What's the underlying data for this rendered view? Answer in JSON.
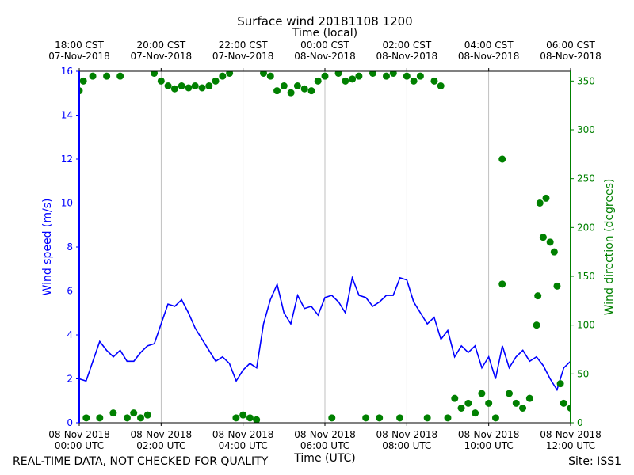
{
  "chart_data": {
    "type": "line",
    "title": "Surface wind 20181108 1200",
    "x_label": "Time (UTC)",
    "x2_label": "Time (local)",
    "y_label": "Wind speed (m/s)",
    "y2_label": "Wind direction (degrees)",
    "footer_left": "REAL-TIME DATA, NOT CHECKED FOR QUALITY",
    "footer_right": "Site: ISS1",
    "xlim": [
      0,
      12
    ],
    "xticks": [
      {
        "value": 0,
        "label": "08-Nov-2018\n00:00 UTC"
      },
      {
        "value": 2,
        "label": "08-Nov-2018\n02:00 UTC"
      },
      {
        "value": 4,
        "label": "08-Nov-2018\n04:00 UTC"
      },
      {
        "value": 6,
        "label": "08-Nov-2018\n06:00 UTC"
      },
      {
        "value": 8,
        "label": "08-Nov-2018\n08:00 UTC"
      },
      {
        "value": 10,
        "label": "08-Nov-2018\n10:00 UTC"
      },
      {
        "value": 12,
        "label": "08-Nov-2018\n12:00 UTC"
      }
    ],
    "x2ticks": [
      {
        "value": 0,
        "label": "18:00 CST\n07-Nov-2018"
      },
      {
        "value": 2,
        "label": "20:00 CST\n07-Nov-2018"
      },
      {
        "value": 4,
        "label": "22:00 CST\n07-Nov-2018"
      },
      {
        "value": 6,
        "label": "00:00 CST\n08-Nov-2018"
      },
      {
        "value": 8,
        "label": "02:00 CST\n08-Nov-2018"
      },
      {
        "value": 10,
        "label": "04:00 CST\n08-Nov-2018"
      },
      {
        "value": 12,
        "label": "06:00 CST\n08-Nov-2018"
      }
    ],
    "ylim": [
      0,
      16
    ],
    "yticks": [
      0,
      2,
      4,
      6,
      8,
      10,
      12,
      14,
      16
    ],
    "y2lim": [
      0,
      360
    ],
    "y2ticks": [
      0,
      50,
      100,
      150,
      200,
      250,
      300,
      350
    ],
    "grid": "x",
    "series": [
      {
        "name": "Wind speed",
        "type": "line",
        "color": "#0000ff",
        "x": [
          0,
          0.167,
          0.333,
          0.5,
          0.667,
          0.833,
          1,
          1.167,
          1.333,
          1.5,
          1.667,
          1.833,
          2,
          2.167,
          2.333,
          2.5,
          2.667,
          2.833,
          3,
          3.167,
          3.333,
          3.5,
          3.667,
          3.833,
          4,
          4.167,
          4.333,
          4.5,
          4.667,
          4.833,
          5,
          5.167,
          5.333,
          5.5,
          5.667,
          5.833,
          6,
          6.167,
          6.333,
          6.5,
          6.667,
          6.833,
          7,
          7.167,
          7.333,
          7.5,
          7.667,
          7.833,
          8,
          8.167,
          8.333,
          8.5,
          8.667,
          8.833,
          9,
          9.167,
          9.333,
          9.5,
          9.667,
          9.833,
          10,
          10.167,
          10.333,
          10.5,
          10.667,
          10.833,
          11,
          11.167,
          11.333,
          11.5,
          11.667,
          11.833,
          12
        ],
        "values": [
          2.0,
          1.9,
          2.8,
          3.7,
          3.3,
          3.0,
          3.3,
          2.8,
          2.8,
          3.2,
          3.5,
          3.6,
          4.5,
          5.4,
          5.3,
          5.6,
          5.0,
          4.3,
          3.8,
          3.3,
          2.8,
          3.0,
          2.7,
          1.9,
          2.4,
          2.7,
          2.5,
          4.5,
          5.6,
          6.3,
          5.0,
          4.5,
          5.8,
          5.2,
          5.3,
          4.9,
          5.7,
          5.8,
          5.5,
          5.0,
          6.6,
          5.8,
          5.7,
          5.3,
          5.5,
          5.8,
          5.8,
          6.6,
          6.5,
          5.5,
          5.0,
          4.5,
          4.8,
          3.8,
          4.2,
          3.0,
          3.5,
          3.2,
          3.5,
          2.5,
          3.0,
          2.0,
          3.5,
          2.5,
          3.0,
          3.3,
          2.8,
          3.0,
          2.6,
          2.0,
          1.5,
          2.5,
          2.8
        ]
      },
      {
        "name": "Wind direction",
        "type": "scatter",
        "axis": "y2",
        "color": "#008000",
        "x": [
          0,
          0.1,
          0.17,
          0.33,
          0.5,
          0.67,
          0.83,
          1,
          1.17,
          1.33,
          1.5,
          1.67,
          1.83,
          2,
          2.17,
          2.33,
          2.5,
          2.67,
          2.83,
          3,
          3.17,
          3.33,
          3.5,
          3.67,
          3.83,
          4,
          4.17,
          4.33,
          4.5,
          4.67,
          4.83,
          5,
          5.17,
          5.33,
          5.5,
          5.67,
          5.83,
          6,
          6.17,
          6.33,
          6.5,
          6.67,
          6.83,
          7,
          7.17,
          7.33,
          7.5,
          7.67,
          7.83,
          8,
          8.17,
          8.33,
          8.5,
          8.67,
          8.83,
          9,
          9.17,
          9.33,
          9.5,
          9.67,
          9.83,
          10,
          10.17,
          10.33,
          10.33,
          10.5,
          10.67,
          10.83,
          11,
          11.17,
          11.2,
          11.25,
          11.33,
          11.4,
          11.5,
          11.6,
          11.67,
          11.75,
          11.83,
          12
        ],
        "values": [
          340,
          350,
          5,
          355,
          5,
          355,
          10,
          355,
          5,
          10,
          5,
          8,
          358,
          350,
          345,
          342,
          345,
          343,
          345,
          343,
          345,
          350,
          355,
          358,
          5,
          8,
          5,
          3,
          358,
          355,
          340,
          345,
          338,
          345,
          342,
          340,
          350,
          355,
          5,
          358,
          350,
          352,
          355,
          5,
          358,
          5,
          355,
          358,
          5,
          355,
          350,
          355,
          5,
          350,
          345,
          5,
          25,
          15,
          20,
          10,
          30,
          20,
          5,
          270,
          142,
          30,
          20,
          15,
          25,
          100,
          130,
          225,
          190,
          230,
          185,
          175,
          140,
          40,
          20,
          15
        ]
      }
    ]
  }
}
